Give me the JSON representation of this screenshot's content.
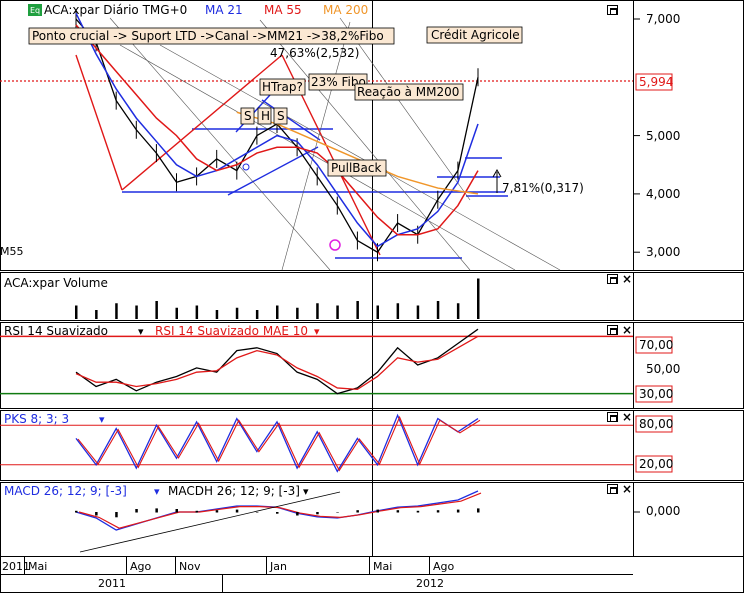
{
  "colors": {
    "price": "#000000",
    "ma21": "#1f2de0",
    "ma55": "#e01818",
    "ma200": "#f0962a",
    "rsi": "#000000",
    "rsi_mae": "#e01818",
    "pks_fast": "#1f2de0",
    "pks_slow": "#e01818",
    "macd": "#1f2de0",
    "macd_signal": "#e01818",
    "level_red": "#e01818",
    "level_green": "#107a10",
    "trend_blue": "#1f2de0",
    "trend_red": "#e01818",
    "grid": "#999999"
  },
  "header": {
    "eq_icon": "Eq",
    "title": "ACA:xpar Diário TMG+0",
    "ma21": "MA 21",
    "ma55": "MA 55",
    "ma200": "MA 200"
  },
  "annotations": {
    "analysis": "Ponto crucial -> Suport LTD ->Canal ->MM21 ->38,2%Fibo",
    "fibo_pct": "47,63%(2,532)",
    "company": "Crédit Agricole",
    "htrap": "HTrap?",
    "fibo23": "23% Fibo",
    "reacao": "Reação à MM200",
    "s1": "S",
    "h": "H",
    "s2": "S",
    "pullback": "PullBack",
    "pct_move": "7,81%(0,317)",
    "mm55_edge": "M55"
  },
  "price_axis": {
    "ticks": [
      "7,000",
      "6,000",
      "5,000",
      "4,000",
      "3,000"
    ],
    "current": "5,994"
  },
  "volume_panel": {
    "label": "ACA:xpar Volume"
  },
  "rsi_panel": {
    "label": "RSI 14 Suavizado",
    "label2": "RSI 14 Suavizado MAE 10",
    "ticks": [
      "70,00",
      "50,00",
      "30,00"
    ]
  },
  "pks_panel": {
    "label": "PKS 8; 3; 3",
    "ticks": [
      "80,00",
      "20,00"
    ]
  },
  "macd_panel": {
    "label": "MACD 26; 12; 9; [-3]",
    "label2": "MACDH 26; 12; 9; [-3]",
    "ticks": [
      "0,000"
    ]
  },
  "time_axis": {
    "months": [
      "2011",
      "Mai",
      "Ago",
      "Nov",
      "Jan",
      "Mai",
      "Ago"
    ],
    "years": [
      "2011",
      "2012"
    ]
  },
  "chart_data": [
    {
      "type": "line",
      "title": "ACA:xpar Diário TMG+0",
      "ylim": [
        2.6,
        7.4
      ],
      "y_ticks": [
        3,
        4,
        5,
        6,
        7
      ],
      "x_labels": [
        "Mai",
        "Ago",
        "Nov",
        "Jan",
        "Mai",
        "Ago"
      ],
      "current_value": 5.994,
      "series": [
        {
          "name": "ACA:xpar",
          "x": [
            0,
            5,
            10,
            15,
            20,
            25,
            30,
            35,
            40,
            45,
            50,
            55,
            60,
            65,
            70,
            75,
            80,
            85,
            90,
            95,
            100
          ],
          "values": [
            7.0,
            6.6,
            5.6,
            5.1,
            4.7,
            4.2,
            4.3,
            4.6,
            4.4,
            5.0,
            5.2,
            4.8,
            4.3,
            3.8,
            3.2,
            3.0,
            3.5,
            3.3,
            3.9,
            4.4,
            6.0
          ]
        },
        {
          "name": "MA 21",
          "x": [
            0,
            5,
            10,
            15,
            20,
            25,
            30,
            35,
            40,
            45,
            50,
            55,
            60,
            65,
            70,
            75,
            80,
            85,
            90,
            95,
            100
          ],
          "values": [
            7.1,
            6.4,
            5.8,
            5.3,
            4.9,
            4.5,
            4.3,
            4.4,
            4.6,
            4.8,
            5.0,
            4.9,
            4.5,
            4.0,
            3.5,
            3.1,
            3.3,
            3.4,
            3.7,
            4.2,
            5.2
          ]
        },
        {
          "name": "MA 55",
          "x": [
            0,
            5,
            10,
            15,
            20,
            25,
            30,
            35,
            40,
            45,
            50,
            55,
            60,
            65,
            70,
            75,
            80,
            85,
            90,
            95,
            100
          ],
          "values": [
            6.9,
            6.5,
            6.1,
            5.7,
            5.3,
            5.0,
            4.6,
            4.4,
            4.5,
            4.7,
            4.8,
            4.8,
            4.7,
            4.4,
            4.0,
            3.6,
            3.3,
            3.3,
            3.4,
            3.8,
            4.4
          ]
        },
        {
          "name": "MA 200",
          "x": [
            40,
            50,
            60,
            70,
            80,
            90,
            100
          ],
          "values": [
            5.4,
            5.2,
            4.9,
            4.6,
            4.3,
            4.1,
            4.0
          ]
        }
      ]
    },
    {
      "type": "bar",
      "title": "ACA:xpar Volume",
      "x": [
        0,
        5,
        10,
        15,
        20,
        25,
        30,
        35,
        40,
        45,
        50,
        55,
        60,
        65,
        70,
        75,
        80,
        85,
        90,
        95,
        100
      ],
      "values": [
        0.3,
        0.2,
        0.35,
        0.3,
        0.4,
        0.25,
        0.3,
        0.2,
        0.25,
        0.2,
        0.3,
        0.25,
        0.35,
        0.3,
        0.4,
        0.3,
        0.35,
        0.3,
        0.4,
        0.35,
        0.9
      ]
    },
    {
      "type": "line",
      "title": "RSI 14 Suavizado",
      "ylim": [
        20,
        80
      ],
      "y_ticks": [
        30,
        50,
        70
      ],
      "series": [
        {
          "name": "RSI 14 Suavizado",
          "x": [
            0,
            5,
            10,
            15,
            20,
            25,
            30,
            35,
            40,
            45,
            50,
            55,
            60,
            65,
            70,
            75,
            80,
            85,
            90,
            95,
            100
          ],
          "values": [
            45,
            35,
            40,
            32,
            38,
            42,
            48,
            45,
            60,
            62,
            58,
            45,
            40,
            30,
            34,
            45,
            62,
            50,
            55,
            65,
            75
          ]
        },
        {
          "name": "RSI 14 Suavizado MAE 10",
          "x": [
            0,
            5,
            10,
            15,
            20,
            25,
            30,
            35,
            40,
            45,
            50,
            55,
            60,
            65,
            70,
            75,
            80,
            85,
            90,
            95,
            100
          ],
          "values": [
            44,
            38,
            38,
            35,
            37,
            40,
            45,
            46,
            55,
            60,
            57,
            48,
            42,
            34,
            33,
            42,
            55,
            52,
            54,
            62,
            70
          ]
        }
      ]
    },
    {
      "type": "line",
      "title": "PKS 8; 3; 3",
      "ylim": [
        0,
        100
      ],
      "y_ticks": [
        20,
        80
      ],
      "series": [
        {
          "name": "PKS 8; 3; 3",
          "x": [
            0,
            5,
            10,
            15,
            20,
            25,
            30,
            35,
            40,
            45,
            50,
            55,
            60,
            65,
            70,
            75,
            80,
            85,
            90,
            95,
            100
          ],
          "values": [
            60,
            20,
            75,
            15,
            80,
            30,
            85,
            25,
            90,
            40,
            85,
            15,
            70,
            10,
            60,
            20,
            95,
            20,
            90,
            70,
            90
          ]
        }
      ]
    },
    {
      "type": "line",
      "title": "MACD 26; 12; 9; [-3]",
      "y_ticks": [
        0
      ],
      "series": [
        {
          "name": "MACD 26; 12; 9; [-3]",
          "x": [
            0,
            5,
            10,
            15,
            20,
            25,
            30,
            35,
            40,
            45,
            50,
            55,
            60,
            65,
            70,
            75,
            80,
            85,
            90,
            95,
            100
          ],
          "values": [
            0.0,
            -0.1,
            -0.3,
            -0.2,
            -0.1,
            0.0,
            0.0,
            0.05,
            0.1,
            0.1,
            0.08,
            -0.02,
            -0.08,
            -0.1,
            -0.05,
            0.02,
            0.08,
            0.1,
            0.15,
            0.2,
            0.35
          ]
        },
        {
          "name": "MACDH 26; 12; 9; [-3]",
          "x": [
            0,
            5,
            10,
            15,
            20,
            25,
            30,
            35,
            40,
            45,
            50,
            55,
            60,
            65,
            70,
            75,
            80,
            85,
            90,
            95,
            100
          ],
          "values": [
            0.02,
            -0.05,
            -0.08,
            0.05,
            0.06,
            0.05,
            0.02,
            0.03,
            0.04,
            0.0,
            -0.02,
            -0.05,
            -0.03,
            0.0,
            0.03,
            0.04,
            0.03,
            0.02,
            0.03,
            0.04,
            0.06
          ]
        }
      ]
    }
  ]
}
